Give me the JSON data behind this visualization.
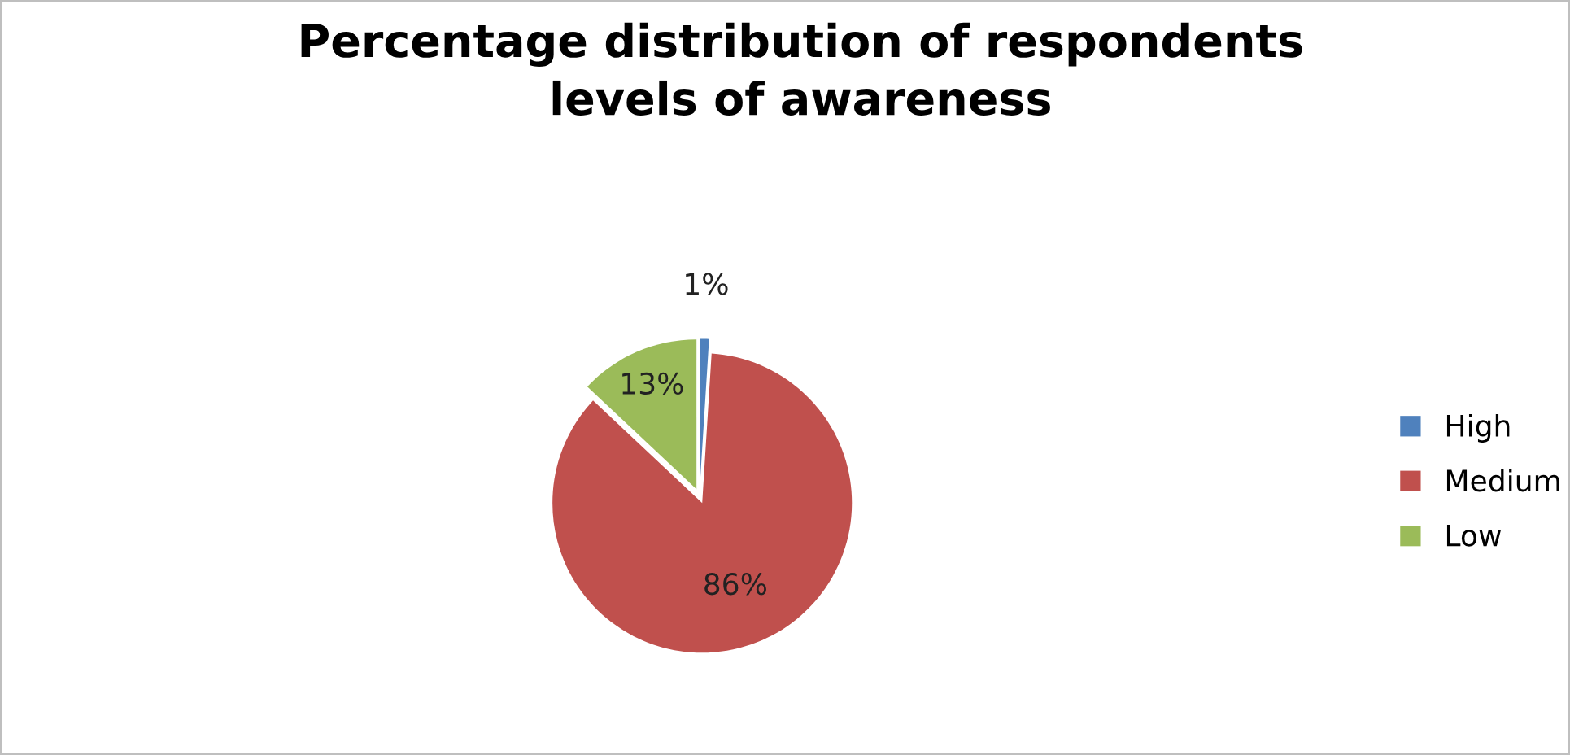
{
  "chart_data": {
    "type": "pie",
    "title": "Percentage distribution of respondents\nlevels of awareness",
    "categories": [
      "High",
      "Medium",
      "Low"
    ],
    "values": [
      1,
      86,
      13
    ],
    "colors": [
      "#4f81bd",
      "#c0504d",
      "#9bbb59"
    ],
    "value_labels": [
      "1%",
      "86%",
      "13%"
    ],
    "legend": "right"
  }
}
